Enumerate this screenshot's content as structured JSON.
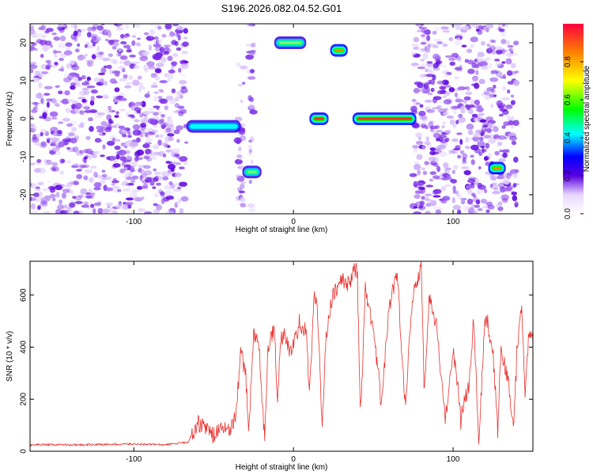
{
  "colors": {
    "snr_line": "#e8312e",
    "axis": "#000000",
    "background": "#ffffff"
  },
  "chart_data": [
    {
      "type": "heatmap",
      "title": "S196.2026.082.04.52.G01",
      "xlabel": "Height of straight line (km)",
      "ylabel": "Frequency (Hz)",
      "xlim": [
        -165,
        150
      ],
      "ylim": [
        -25,
        25
      ],
      "xticks": [
        -100,
        0,
        100
      ],
      "xtick_labels": [
        "-100",
        "0",
        "100"
      ],
      "yticks": [
        -20,
        -10,
        0,
        10,
        20
      ],
      "ytick_labels": [
        "-20",
        "-10",
        "0",
        "10",
        "20"
      ],
      "colorbar": {
        "label": "Normalized spectral amplitude",
        "range": [
          0.0,
          1.0
        ],
        "ticks": [
          0.0,
          0.2,
          0.4,
          0.6,
          0.8
        ],
        "tick_labels": [
          "0.0",
          "0.2",
          "0.4",
          "0.6",
          "0.8"
        ]
      },
      "noise_regions_km": [
        [
          -165,
          -67
        ],
        [
          -35,
          -31
        ],
        [
          -28,
          -25
        ],
        [
          75,
          140
        ]
      ],
      "signals": [
        {
          "x": [
            -12,
            8
          ],
          "freq": 20,
          "amplitude": 0.65
        },
        {
          "x": [
            23,
            34
          ],
          "freq": 18,
          "amplitude": 0.9
        },
        {
          "x": [
            10,
            22
          ],
          "freq": 0,
          "amplitude": 0.95
        },
        {
          "x": [
            37,
            77
          ],
          "freq": 0,
          "amplitude": 1.0
        },
        {
          "x": [
            -32,
            -20
          ],
          "freq": -14,
          "amplitude": 0.7
        },
        {
          "x": [
            122,
            133
          ],
          "freq": -13,
          "amplitude": 0.75
        },
        {
          "x": [
            -67,
            -33
          ],
          "freq": -2,
          "amplitude": 0.45
        }
      ]
    },
    {
      "type": "line",
      "title": "",
      "xlabel": "Height of straight line (km)",
      "ylabel": "SNR (10 * v/v)",
      "xlim": [
        -165,
        150
      ],
      "ylim": [
        0,
        730
      ],
      "xticks": [
        -100,
        0,
        100
      ],
      "xtick_labels": [
        "-100",
        "0",
        "100"
      ],
      "yticks": [
        0,
        200,
        400,
        600
      ],
      "ytick_labels": [
        "0",
        "200",
        "400",
        "600"
      ],
      "series": [
        {
          "name": "SNR",
          "x": [
            -165,
            -130,
            -100,
            -80,
            -66,
            -60,
            -55,
            -50,
            -45,
            -40,
            -36,
            -33,
            -30,
            -28,
            -25,
            -22,
            -18,
            -16,
            -12,
            -10,
            -8,
            -5,
            -2,
            2,
            5,
            8,
            10,
            13,
            15,
            18,
            20,
            22,
            25,
            30,
            35,
            38,
            40,
            42,
            45,
            50,
            55,
            60,
            65,
            70,
            75,
            78,
            80,
            82,
            85,
            90,
            95,
            100,
            105,
            110,
            113,
            116,
            120,
            125,
            128,
            130,
            135,
            138,
            140,
            143,
            145,
            147,
            150
          ],
          "y": [
            25,
            25,
            28,
            25,
            35,
            110,
            90,
            60,
            95,
            70,
            150,
            380,
            300,
            80,
            440,
            450,
            40,
            400,
            470,
            200,
            430,
            450,
            380,
            440,
            480,
            460,
            210,
            620,
            560,
            80,
            400,
            520,
            600,
            660,
            640,
            700,
            690,
            130,
            620,
            470,
            180,
            560,
            680,
            180,
            620,
            660,
            730,
            210,
            600,
            470,
            110,
            400,
            140,
            260,
            520,
            20,
            520,
            380,
            70,
            400,
            250,
            90,
            400,
            560,
            220,
            460,
            440
          ]
        }
      ]
    }
  ]
}
